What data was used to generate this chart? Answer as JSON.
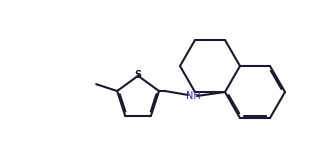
{
  "bg_color": "#ffffff",
  "line_color": "#1a1a2e",
  "line_width": 1.5,
  "N_color": "#2222aa",
  "S_color": "#1a1a2e",
  "figsize": [
    3.17,
    1.47
  ],
  "dpi": 100,
  "xlim": [
    0.0,
    3.17
  ],
  "ylim": [
    0.0,
    1.47
  ]
}
